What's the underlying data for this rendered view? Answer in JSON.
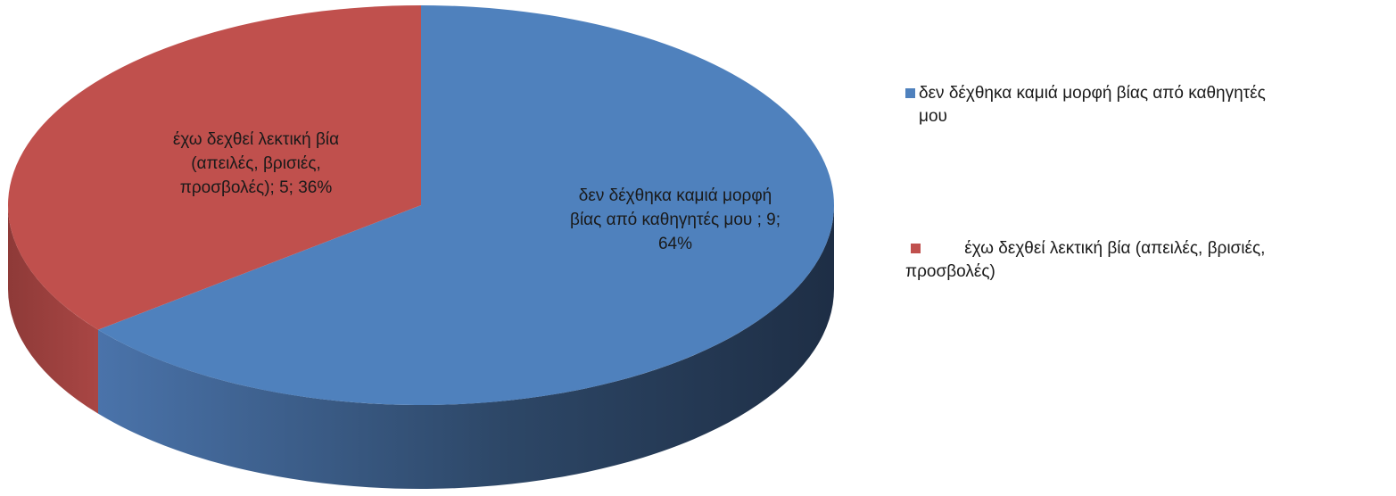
{
  "chart_data": {
    "type": "pie",
    "title": "",
    "style": "3d",
    "legend_position": "right",
    "slices": [
      {
        "name": "δεν δέχθηκα καμιά μορφή βίας από  καθηγητές μου",
        "value": 9,
        "percent": 64,
        "color": "#4F81BD",
        "label_lines": [
          "δεν δέχθηκα καμιά μορφή",
          "βίας από  καθηγητές μου  ; 9;",
          "64%"
        ]
      },
      {
        "name": "έχω δεχθεί λεκτική βία (απειλές, βρισιές, προσβολές)",
        "value": 5,
        "percent": 36,
        "color": "#C0504D",
        "label_lines": [
          "έχω δεχθεί λεκτική βία",
          "(απειλές, βρισιές,",
          "προσβολές); 5; 36%"
        ]
      }
    ]
  },
  "legend": {
    "items": [
      {
        "line1": "δεν δέχθηκα καμιά μορφή βίας από  καθηγητές",
        "line2": "μου",
        "color": "#4F81BD"
      },
      {
        "line1": "        έχω δεχθεί λεκτική βία (απειλές, βρισιές,",
        "line2": "προσβολές)",
        "color": "#C0504D"
      }
    ]
  }
}
